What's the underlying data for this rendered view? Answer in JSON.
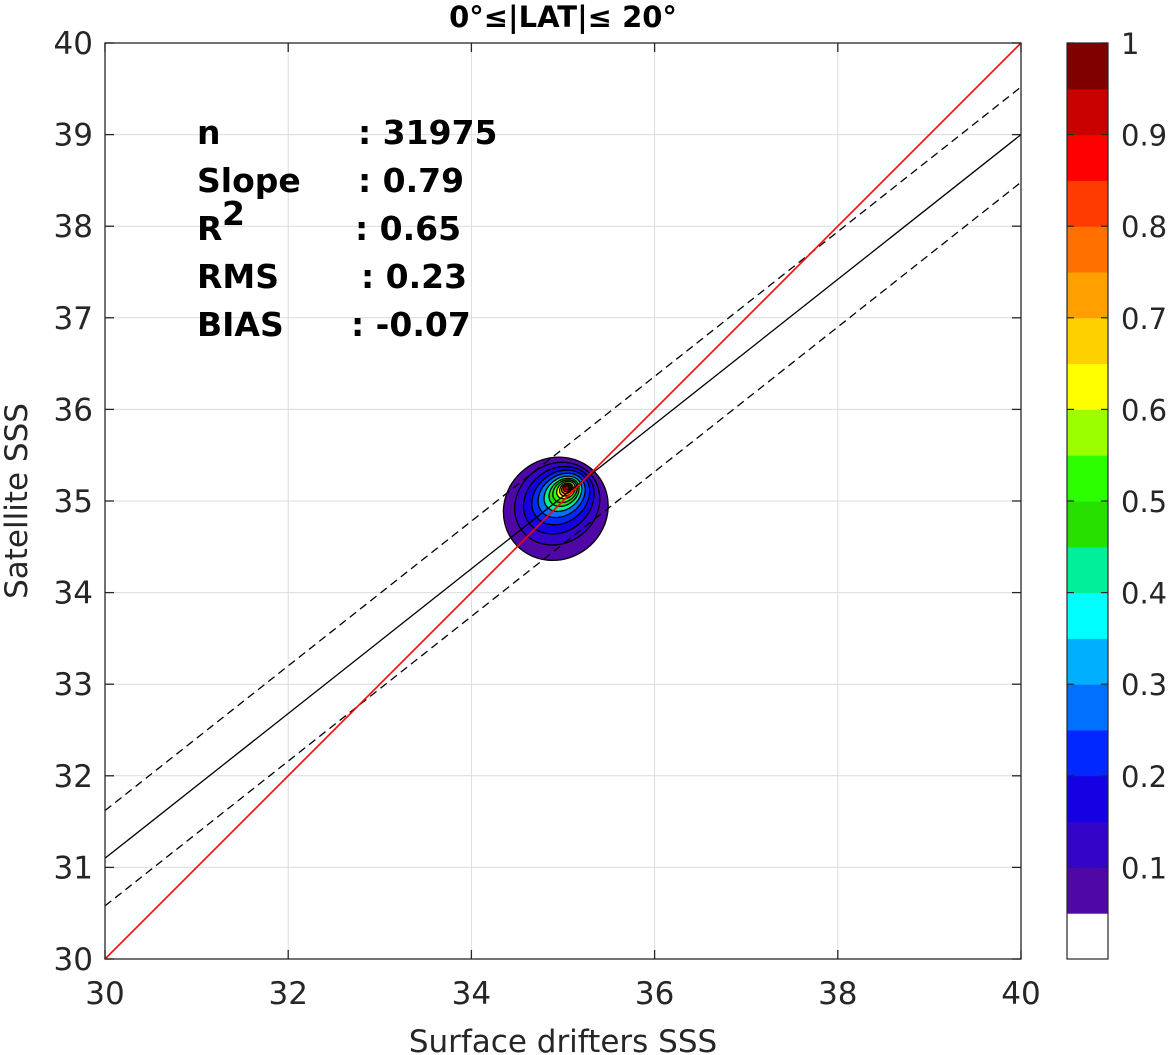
{
  "chart_data": {
    "type": "contour",
    "title": "0°≤|LAT|≤ 20°",
    "xlabel": "Surface drifters SSS",
    "ylabel": "Satellite SSS",
    "xlim": [
      30,
      40
    ],
    "ylim": [
      30,
      40
    ],
    "xticks": [
      "30",
      "32",
      "34",
      "36",
      "38",
      "40"
    ],
    "yticks": [
      "30",
      "31",
      "32",
      "33",
      "34",
      "35",
      "36",
      "37",
      "38",
      "39",
      "40"
    ],
    "grid": true,
    "stats": [
      {
        "label": "n",
        "sep": ": 31975"
      },
      {
        "label": "Slope",
        "sep": ": 0.79"
      },
      {
        "label": "R",
        "sup": "2",
        "sep": ": 0.65"
      },
      {
        "label": "RMS",
        "sep": ": 0.23"
      },
      {
        "label": "BIAS",
        "sep": ": -0.07"
      }
    ],
    "lines": {
      "identity": {
        "slope": 1.0,
        "intercept": 0.0,
        "color": "#ff0000"
      },
      "regression": {
        "slope": 0.79,
        "intercept": 7.4,
        "color": "#000000"
      },
      "regression_band_offset": 0.52
    },
    "density_peak": {
      "x": 35.05,
      "y": 35.15
    },
    "colorbar": {
      "ticks": [
        "0.1",
        "0.2",
        "0.3",
        "0.4",
        "0.5",
        "0.6",
        "0.7",
        "0.8",
        "0.9",
        "1"
      ],
      "colors": [
        "#ffffff",
        "#4f08a6",
        "#3405c8",
        "#1500e4",
        "#0028ff",
        "#0070ff",
        "#00b0ff",
        "#00ffff",
        "#00f09a",
        "#28e000",
        "#2bff00",
        "#9cff00",
        "#ffff00",
        "#ffd000",
        "#ff9f00",
        "#ff7000",
        "#ff3c00",
        "#ff0000",
        "#c80000",
        "#800000"
      ]
    }
  }
}
